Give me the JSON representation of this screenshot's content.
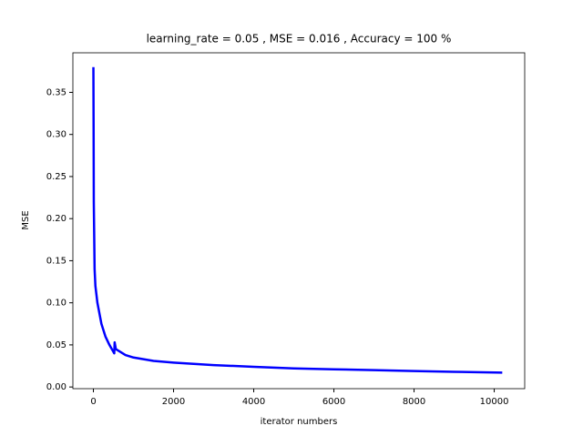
{
  "chart_data": {
    "type": "line",
    "title": "learning_rate = 0.05 , MSE = 0.016 , Accuracy = 100 %",
    "xlabel": "iterator numbers",
    "ylabel": "MSE",
    "x": [
      0,
      5,
      10,
      20,
      30,
      50,
      100,
      200,
      300,
      400,
      520,
      530,
      560,
      800,
      1000,
      1500,
      2000,
      3000,
      4000,
      5000,
      6000,
      7000,
      8000,
      9000,
      10200
    ],
    "series": [
      {
        "name": "MSE",
        "color": "#0000ff",
        "values": [
          0.38,
          0.31,
          0.22,
          0.18,
          0.14,
          0.12,
          0.1,
          0.075,
          0.06,
          0.05,
          0.04,
          0.053,
          0.045,
          0.038,
          0.035,
          0.031,
          0.029,
          0.026,
          0.024,
          0.022,
          0.021,
          0.02,
          0.019,
          0.018,
          0.017
        ]
      }
    ],
    "xlim": [
      -512,
      10760
    ],
    "ylim": [
      -0.002,
      0.397
    ],
    "xticks": [
      0,
      2000,
      4000,
      6000,
      8000,
      10000
    ],
    "yticks": [
      {
        "value": 0,
        "label": "0.00"
      },
      {
        "value": 0.05,
        "label": "0.05"
      },
      {
        "value": 0.1,
        "label": "0.10"
      },
      {
        "value": 0.15,
        "label": "0.15"
      },
      {
        "value": 0.2,
        "label": "0.20"
      },
      {
        "value": 0.25,
        "label": "0.25"
      },
      {
        "value": 0.3,
        "label": "0.30"
      },
      {
        "value": 0.35,
        "label": "0.35"
      }
    ]
  }
}
